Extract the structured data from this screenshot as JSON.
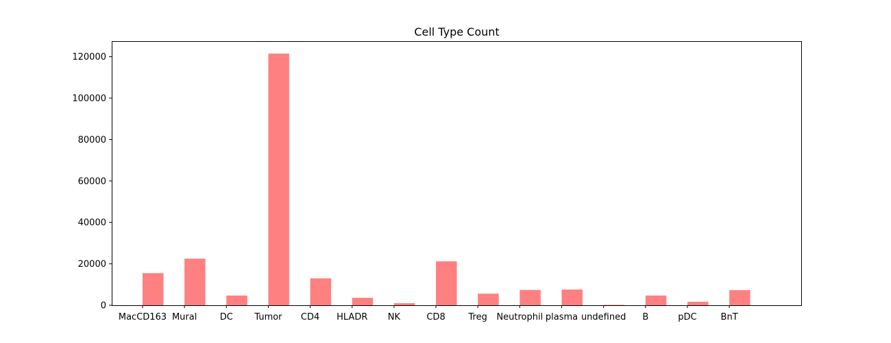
{
  "chart_data": {
    "type": "bar",
    "title": "Cell Type Count",
    "xlabel": "",
    "ylabel": "",
    "categories": [
      "MacCD163",
      "Mural",
      "DC",
      "Tumor",
      "CD4",
      "HLADR",
      "NK",
      "CD8",
      "Treg",
      "Neutrophil",
      "plasma",
      "undefined",
      "B",
      "pDC",
      "BnT"
    ],
    "values": [
      15500,
      22500,
      4700,
      121500,
      13000,
      3600,
      1000,
      21200,
      5600,
      7400,
      7600,
      200,
      4700,
      1700,
      7300
    ],
    "ylim": [
      0,
      127500
    ],
    "yticks": [
      0,
      20000,
      40000,
      60000,
      80000,
      100000,
      120000
    ],
    "ytick_labels": [
      "0",
      "20000",
      "40000",
      "60000",
      "80000",
      "100000",
      "120000"
    ],
    "bar_color": "#ff8080",
    "grid": false,
    "legend": "none"
  }
}
